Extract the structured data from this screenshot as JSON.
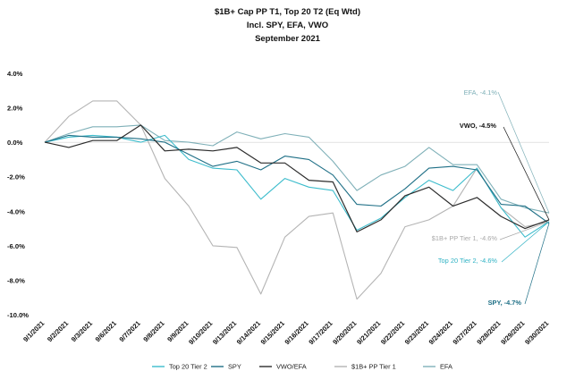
{
  "chart_data": {
    "type": "line",
    "title": "$1B+ Cap PP T1, Top 20 T2  (Eq Wtd)",
    "subtitle": "Incl. SPY, EFA, VWO",
    "period": "September 2021",
    "xlabel": "",
    "ylabel": "",
    "ylim": [
      -10,
      4
    ],
    "yticks": [
      "4.0%",
      "2.0%",
      "0.0%",
      "-2.0%",
      "-4.0%",
      "-6.0%",
      "-8.0%",
      "-10.0%"
    ],
    "grid": false,
    "legend": "bottom",
    "x": [
      "9/1/2021",
      "9/2/2021",
      "9/3/2021",
      "9/6/2021",
      "9/7/2021",
      "9/8/2021",
      "9/9/2021",
      "9/10/2021",
      "9/13/2021",
      "9/14/2021",
      "9/15/2021",
      "9/16/2021",
      "9/17/2021",
      "9/20/2021",
      "9/21/2021",
      "9/22/2021",
      "9/23/2021",
      "9/24/2021",
      "9/27/2021",
      "9/28/2021",
      "9/29/2021",
      "9/30/2021"
    ],
    "series": [
      {
        "name": "Top 20 Tier 2",
        "color": "#3cbccc",
        "values": [
          0,
          0.3,
          0.4,
          0.3,
          0,
          0.4,
          -1,
          -1.5,
          -1.6,
          -3.3,
          -2.1,
          -2.6,
          -2.8,
          -5.1,
          -4.4,
          -3.2,
          -2.2,
          -2.8,
          -1.5,
          -3.8,
          -5.5,
          -4.6
        ]
      },
      {
        "name": "SPY",
        "color": "#1e6f86",
        "values": [
          0,
          0.4,
          0.3,
          0.3,
          0.2,
          0,
          -0.7,
          -1.4,
          -1.1,
          -1.6,
          -0.8,
          -1,
          -1.9,
          -3.6,
          -3.7,
          -2.7,
          -1.5,
          -1.4,
          -1.6,
          -3.6,
          -3.7,
          -4.7
        ]
      },
      {
        "name": "VWO/EFA",
        "color": "#2c2c2c",
        "values": [
          0,
          -0.3,
          0.1,
          0.1,
          1,
          -0.5,
          -0.4,
          -0.5,
          -0.3,
          -1.2,
          -1.2,
          -2.2,
          -2.3,
          -5.2,
          -4.5,
          -3.1,
          -2.6,
          -3.7,
          -3.2,
          -4.3,
          -5,
          -4.5
        ]
      },
      {
        "name": "$1B+ PP Tier 1",
        "color": "#b4b4b4",
        "values": [
          0,
          1.5,
          2.4,
          2.4,
          1,
          -2.1,
          -3.7,
          -6,
          -6.1,
          -8.8,
          -5.5,
          -4.3,
          -4.1,
          -9.1,
          -7.6,
          -4.9,
          -4.5,
          -3.7,
          -1.5,
          -3.8,
          -4.9,
          -4.6
        ]
      },
      {
        "name": "EFA",
        "color": "#7fb0b8",
        "values": [
          0,
          0.5,
          0.9,
          0.9,
          1,
          0.1,
          0,
          -0.2,
          0.6,
          0.2,
          0.5,
          0.3,
          -1.1,
          -2.8,
          -1.9,
          -1.4,
          -0.3,
          -1.3,
          -1.3,
          -3.3,
          -3.8,
          -4.1
        ]
      }
    ],
    "annotations": [
      {
        "text": "EFA, -4.1%",
        "color": "#7fb0b8",
        "bold": false
      },
      {
        "text": "VWO, -4.5%",
        "color": "#111111",
        "bold": true
      },
      {
        "text": "$1B+ PP Tier 1, -4.6%",
        "color": "#a8a8a8",
        "bold": false
      },
      {
        "text": "Top 20 Tier 2, -4.6%",
        "color": "#2fb2c4",
        "bold": false
      },
      {
        "text": "SPY, -4.7%",
        "color": "#1e6f86",
        "bold": true
      }
    ]
  }
}
